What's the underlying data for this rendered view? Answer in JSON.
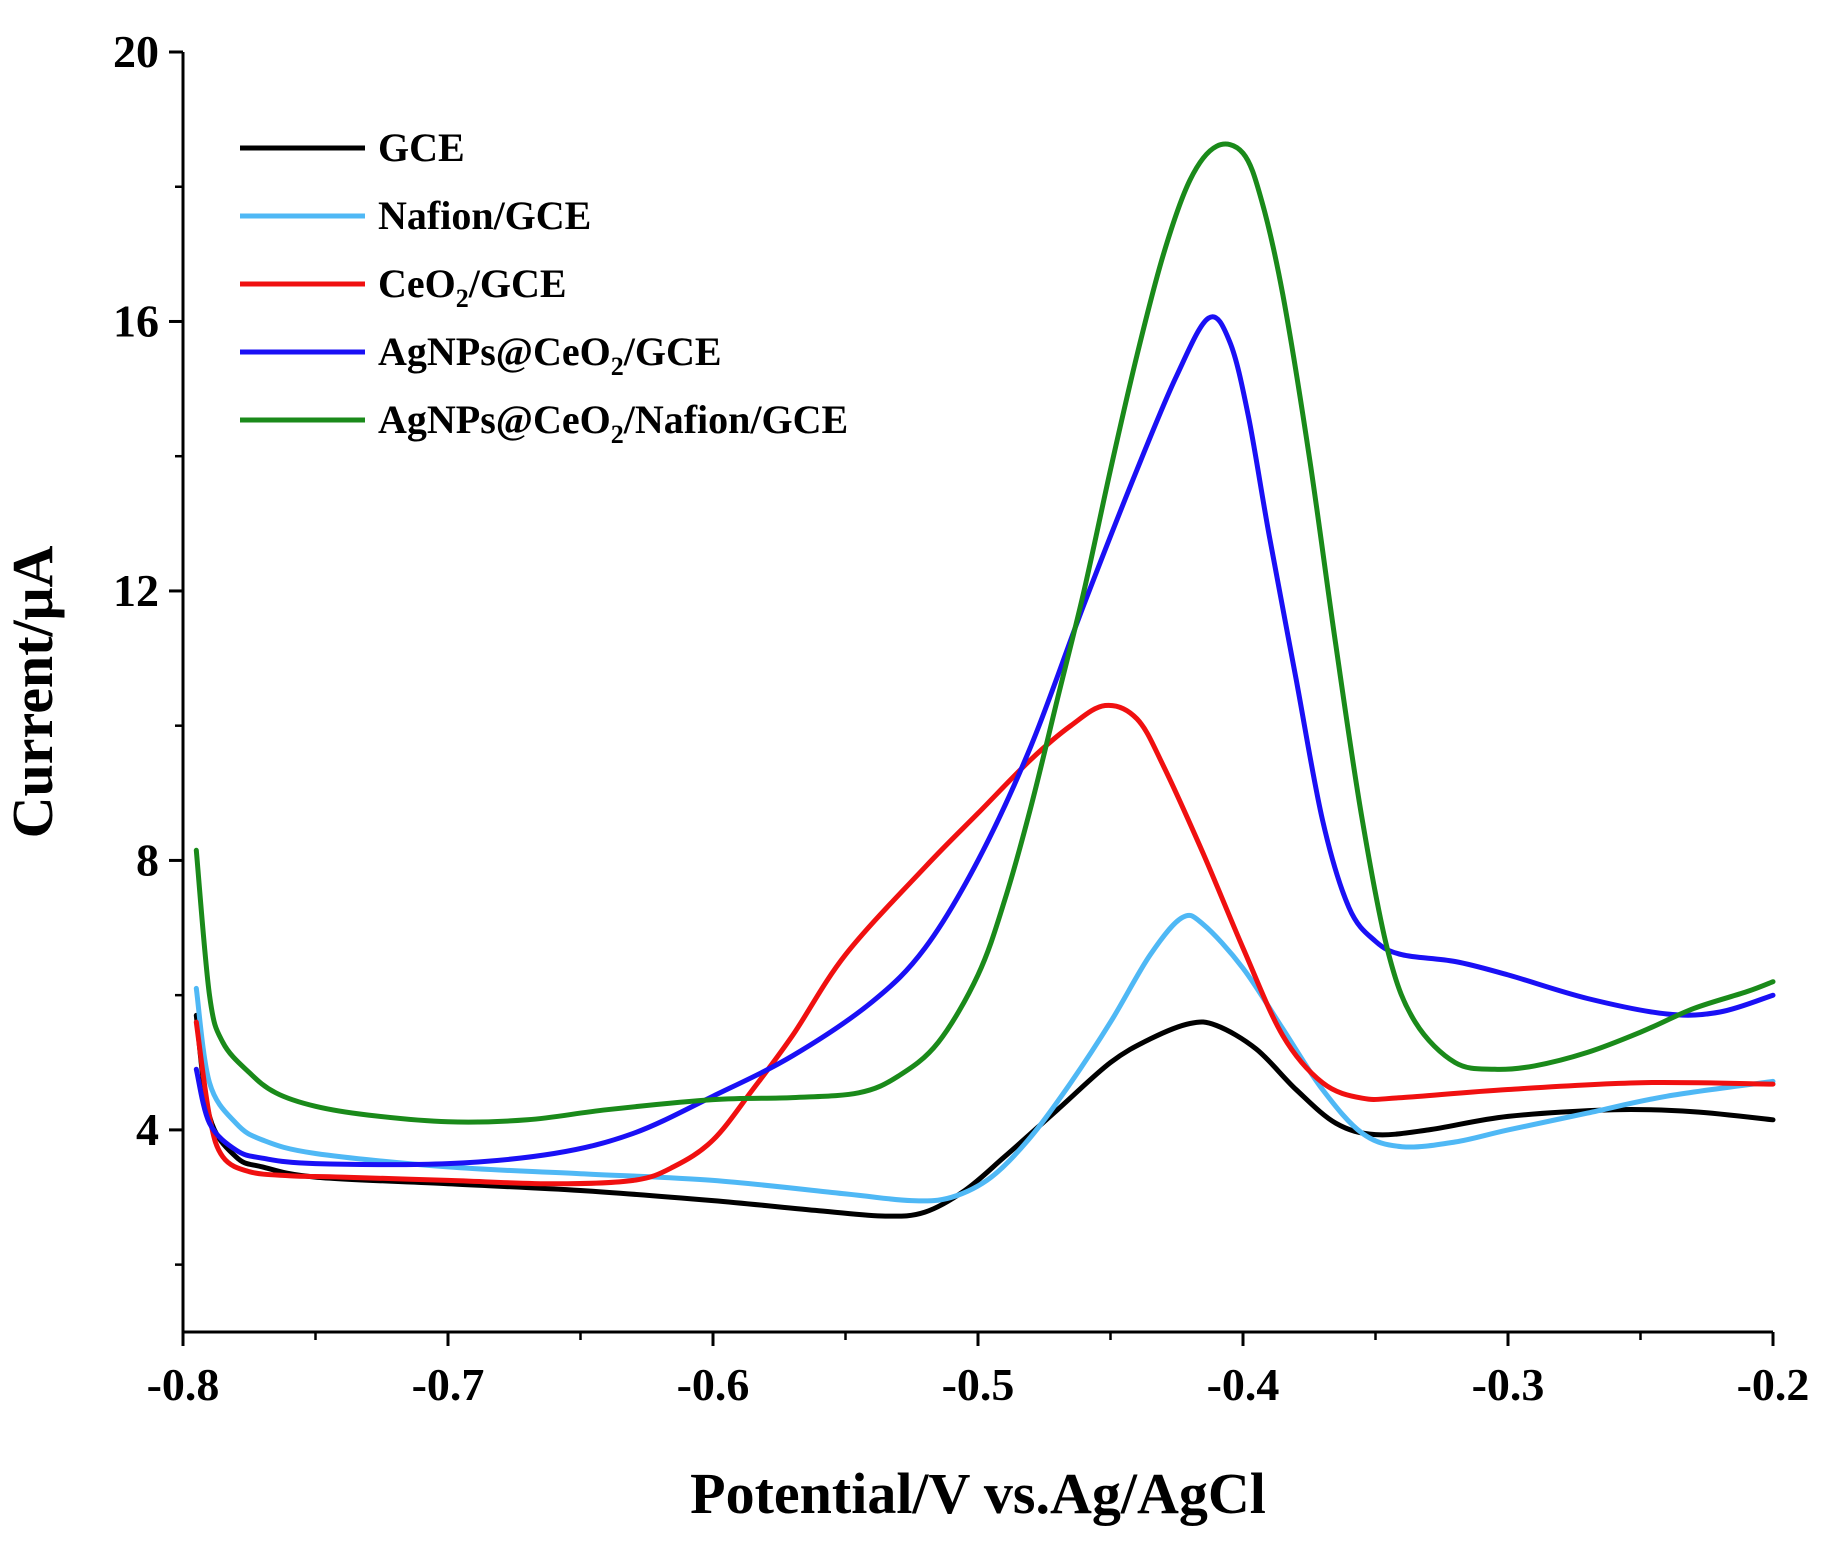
{
  "chart_data": {
    "type": "line",
    "title": "",
    "xlabel": "Potential/V vs.Ag/AgCl",
    "ylabel": "Current/μA",
    "xlim": [
      -0.8,
      -0.2
    ],
    "ylim": [
      1.0,
      20.0
    ],
    "x_ticks": [
      -0.8,
      -0.7,
      -0.6,
      -0.5,
      -0.4,
      -0.3,
      -0.2
    ],
    "x_tick_labels": [
      "-0.8",
      "-0.7",
      "-0.6",
      "-0.5",
      "-0.4",
      "-0.3",
      "-0.2"
    ],
    "y_ticks": [
      4,
      8,
      12,
      16,
      20
    ],
    "y_tick_labels": [
      "4",
      "8",
      "12",
      "16",
      "20"
    ],
    "grid": false,
    "legend_position": "top-left",
    "series": [
      {
        "name": "GCE",
        "legend_parts": [
          {
            "t": "GCE",
            "sub": false
          }
        ],
        "color": "#000000",
        "points": [
          [
            -0.795,
            5.7
          ],
          [
            -0.79,
            4.2
          ],
          [
            -0.78,
            3.6
          ],
          [
            -0.77,
            3.45
          ],
          [
            -0.75,
            3.3
          ],
          [
            -0.7,
            3.2
          ],
          [
            -0.65,
            3.1
          ],
          [
            -0.6,
            2.95
          ],
          [
            -0.56,
            2.8
          ],
          [
            -0.535,
            2.72
          ],
          [
            -0.52,
            2.78
          ],
          [
            -0.505,
            3.1
          ],
          [
            -0.49,
            3.6
          ],
          [
            -0.47,
            4.3
          ],
          [
            -0.45,
            5.0
          ],
          [
            -0.435,
            5.35
          ],
          [
            -0.42,
            5.58
          ],
          [
            -0.41,
            5.55
          ],
          [
            -0.395,
            5.2
          ],
          [
            -0.38,
            4.6
          ],
          [
            -0.365,
            4.1
          ],
          [
            -0.35,
            3.93
          ],
          [
            -0.33,
            4.0
          ],
          [
            -0.3,
            4.2
          ],
          [
            -0.26,
            4.3
          ],
          [
            -0.23,
            4.27
          ],
          [
            -0.2,
            4.15
          ]
        ]
      },
      {
        "name": "Nafion/GCE",
        "legend_parts": [
          {
            "t": "Nafion/GCE",
            "sub": false
          }
        ],
        "color": "#4fb8f5",
        "points": [
          [
            -0.795,
            6.1
          ],
          [
            -0.79,
            4.7
          ],
          [
            -0.78,
            4.1
          ],
          [
            -0.77,
            3.85
          ],
          [
            -0.75,
            3.65
          ],
          [
            -0.7,
            3.45
          ],
          [
            -0.65,
            3.35
          ],
          [
            -0.6,
            3.25
          ],
          [
            -0.55,
            3.05
          ],
          [
            -0.525,
            2.95
          ],
          [
            -0.51,
            3.0
          ],
          [
            -0.495,
            3.3
          ],
          [
            -0.48,
            3.9
          ],
          [
            -0.465,
            4.7
          ],
          [
            -0.45,
            5.6
          ],
          [
            -0.435,
            6.6
          ],
          [
            -0.423,
            7.15
          ],
          [
            -0.415,
            7.05
          ],
          [
            -0.4,
            6.4
          ],
          [
            -0.385,
            5.5
          ],
          [
            -0.37,
            4.6
          ],
          [
            -0.355,
            3.95
          ],
          [
            -0.34,
            3.75
          ],
          [
            -0.32,
            3.82
          ],
          [
            -0.3,
            4.0
          ],
          [
            -0.27,
            4.25
          ],
          [
            -0.24,
            4.5
          ],
          [
            -0.2,
            4.72
          ]
        ]
      },
      {
        "name": "CeO2/GCE",
        "legend_parts": [
          {
            "t": "CeO",
            "sub": false
          },
          {
            "t": "2",
            "sub": true
          },
          {
            "t": "/GCE",
            "sub": false
          }
        ],
        "color": "#f01010",
        "points": [
          [
            -0.795,
            5.6
          ],
          [
            -0.79,
            4.2
          ],
          [
            -0.785,
            3.6
          ],
          [
            -0.775,
            3.38
          ],
          [
            -0.76,
            3.32
          ],
          [
            -0.74,
            3.3
          ],
          [
            -0.7,
            3.25
          ],
          [
            -0.66,
            3.2
          ],
          [
            -0.63,
            3.25
          ],
          [
            -0.615,
            3.45
          ],
          [
            -0.6,
            3.85
          ],
          [
            -0.585,
            4.6
          ],
          [
            -0.57,
            5.4
          ],
          [
            -0.55,
            6.6
          ],
          [
            -0.52,
            7.9
          ],
          [
            -0.5,
            8.7
          ],
          [
            -0.48,
            9.5
          ],
          [
            -0.465,
            10.0
          ],
          [
            -0.452,
            10.3
          ],
          [
            -0.44,
            10.1
          ],
          [
            -0.43,
            9.4
          ],
          [
            -0.415,
            8.1
          ],
          [
            -0.4,
            6.7
          ],
          [
            -0.385,
            5.4
          ],
          [
            -0.37,
            4.7
          ],
          [
            -0.355,
            4.47
          ],
          [
            -0.34,
            4.48
          ],
          [
            -0.3,
            4.6
          ],
          [
            -0.25,
            4.7
          ],
          [
            -0.2,
            4.68
          ]
        ]
      },
      {
        "name": "AgNPs@CeO2/GCE",
        "legend_parts": [
          {
            "t": "AgNPs@CeO",
            "sub": false
          },
          {
            "t": "2",
            "sub": true
          },
          {
            "t": "/GCE",
            "sub": false
          }
        ],
        "color": "#1a10f5",
        "points": [
          [
            -0.795,
            4.9
          ],
          [
            -0.79,
            4.1
          ],
          [
            -0.78,
            3.7
          ],
          [
            -0.77,
            3.58
          ],
          [
            -0.75,
            3.5
          ],
          [
            -0.7,
            3.5
          ],
          [
            -0.66,
            3.65
          ],
          [
            -0.63,
            3.95
          ],
          [
            -0.6,
            4.5
          ],
          [
            -0.57,
            5.1
          ],
          [
            -0.54,
            5.9
          ],
          [
            -0.52,
            6.7
          ],
          [
            -0.5,
            8.0
          ],
          [
            -0.48,
            9.7
          ],
          [
            -0.46,
            11.8
          ],
          [
            -0.44,
            13.8
          ],
          [
            -0.425,
            15.2
          ],
          [
            -0.413,
            16.05
          ],
          [
            -0.405,
            15.7
          ],
          [
            -0.398,
            14.6
          ],
          [
            -0.39,
            12.8
          ],
          [
            -0.38,
            10.7
          ],
          [
            -0.37,
            8.6
          ],
          [
            -0.36,
            7.3
          ],
          [
            -0.35,
            6.8
          ],
          [
            -0.34,
            6.6
          ],
          [
            -0.32,
            6.5
          ],
          [
            -0.3,
            6.3
          ],
          [
            -0.27,
            5.95
          ],
          [
            -0.24,
            5.72
          ],
          [
            -0.22,
            5.75
          ],
          [
            -0.2,
            6.0
          ]
        ]
      },
      {
        "name": "AgNPs@CeO2/Nafion/GCE",
        "legend_parts": [
          {
            "t": "AgNPs@CeO",
            "sub": false
          },
          {
            "t": "2",
            "sub": true
          },
          {
            "t": "/Nafion/GCE",
            "sub": false
          }
        ],
        "color": "#1a8a1a",
        "points": [
          [
            -0.795,
            8.15
          ],
          [
            -0.79,
            6.0
          ],
          [
            -0.785,
            5.3
          ],
          [
            -0.775,
            4.85
          ],
          [
            -0.765,
            4.55
          ],
          [
            -0.75,
            4.35
          ],
          [
            -0.73,
            4.22
          ],
          [
            -0.7,
            4.12
          ],
          [
            -0.67,
            4.15
          ],
          [
            -0.64,
            4.3
          ],
          [
            -0.6,
            4.45
          ],
          [
            -0.57,
            4.48
          ],
          [
            -0.545,
            4.55
          ],
          [
            -0.53,
            4.8
          ],
          [
            -0.515,
            5.3
          ],
          [
            -0.5,
            6.3
          ],
          [
            -0.49,
            7.4
          ],
          [
            -0.48,
            8.8
          ],
          [
            -0.47,
            10.4
          ],
          [
            -0.46,
            12.0
          ],
          [
            -0.45,
            13.8
          ],
          [
            -0.44,
            15.5
          ],
          [
            -0.43,
            17.0
          ],
          [
            -0.42,
            18.1
          ],
          [
            -0.41,
            18.6
          ],
          [
            -0.4,
            18.5
          ],
          [
            -0.393,
            17.8
          ],
          [
            -0.385,
            16.4
          ],
          [
            -0.375,
            14.0
          ],
          [
            -0.365,
            11.2
          ],
          [
            -0.355,
            8.6
          ],
          [
            -0.345,
            6.6
          ],
          [
            -0.335,
            5.6
          ],
          [
            -0.32,
            5.0
          ],
          [
            -0.305,
            4.9
          ],
          [
            -0.29,
            4.95
          ],
          [
            -0.27,
            5.15
          ],
          [
            -0.25,
            5.45
          ],
          [
            -0.23,
            5.8
          ],
          [
            -0.21,
            6.05
          ],
          [
            -0.2,
            6.2
          ]
        ]
      }
    ]
  }
}
